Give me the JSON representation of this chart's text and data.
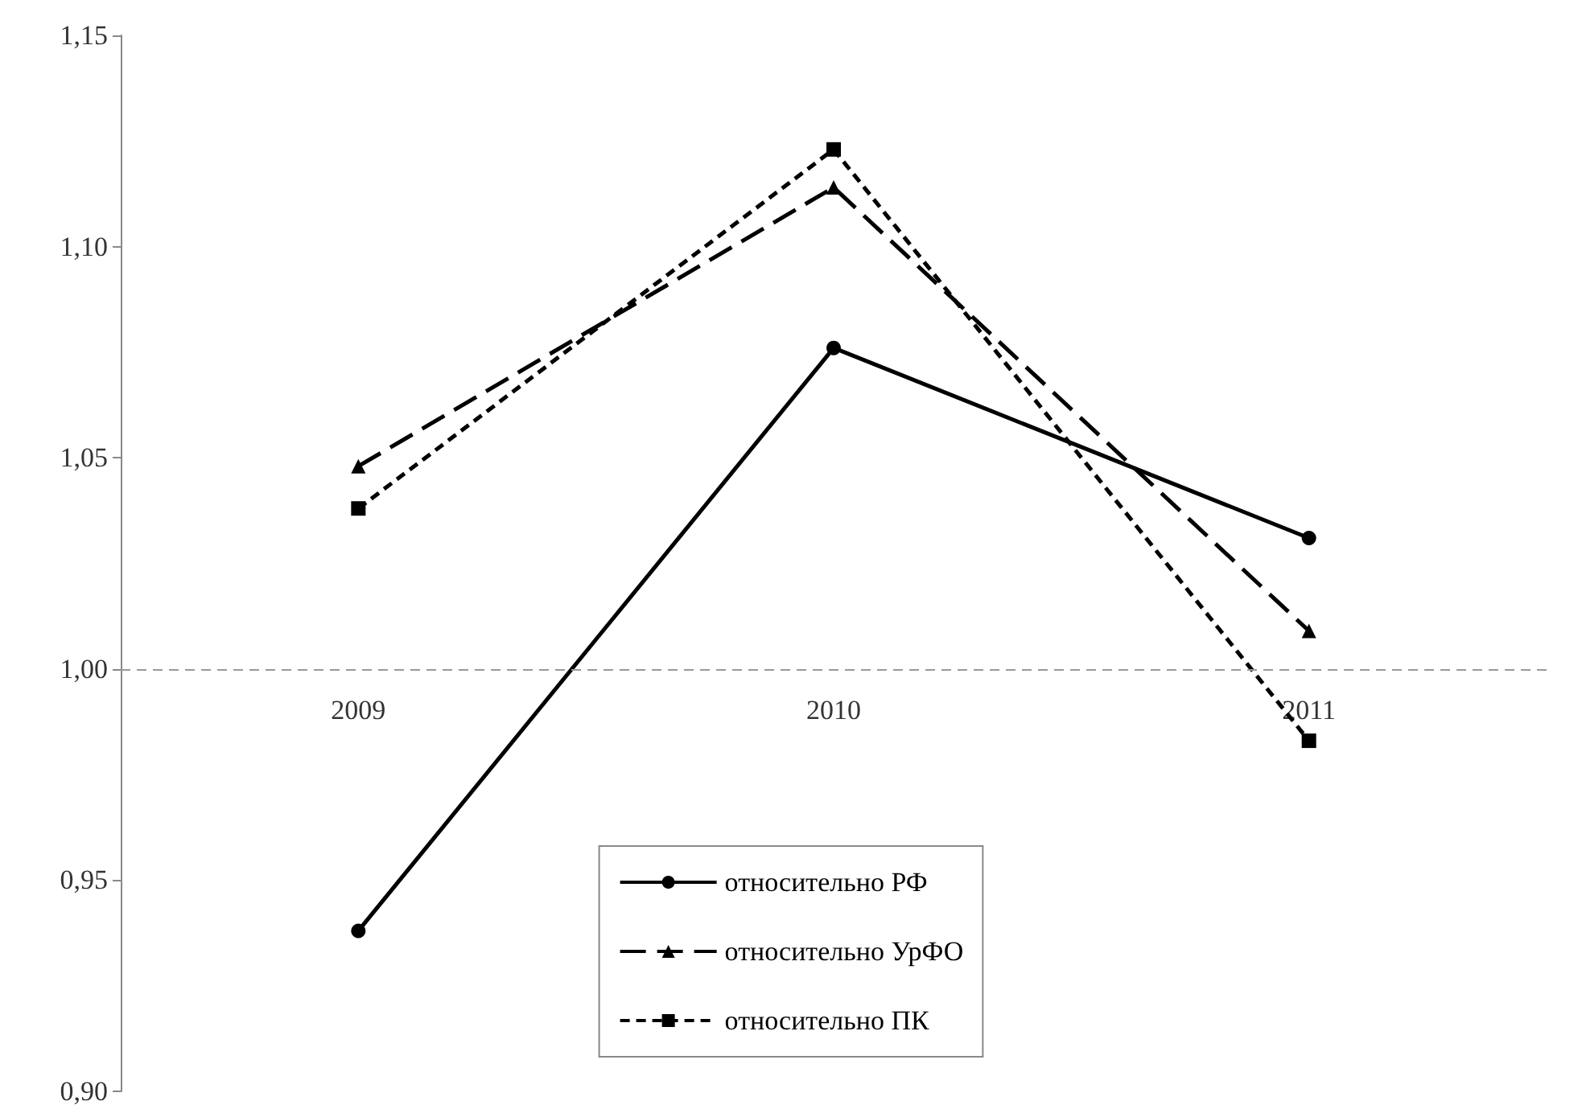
{
  "chart_data": {
    "type": "line",
    "categories": [
      "2009",
      "2010",
      "2011"
    ],
    "series": [
      {
        "name": "относительно РФ",
        "color": "#000000",
        "values": [
          0.938,
          1.076,
          1.031
        ],
        "marker": "circle",
        "line_style": "solid"
      },
      {
        "name": "относительно УрФО",
        "color": "#000000",
        "values": [
          1.048,
          1.114,
          1.009
        ],
        "marker": "triangle",
        "line_style": "dashed"
      },
      {
        "name": "относительно ПК",
        "color": "#000000",
        "values": [
          1.038,
          1.123,
          0.983
        ],
        "marker": "square",
        "line_style": "dotted"
      }
    ],
    "ylim": [
      0.9,
      1.15
    ],
    "yticks": [
      {
        "value": 0.9,
        "label": "0,90"
      },
      {
        "value": 0.95,
        "label": "0,95"
      },
      {
        "value": 1.0,
        "label": "1,00"
      },
      {
        "value": 1.05,
        "label": "1,05"
      },
      {
        "value": 1.1,
        "label": "1,10"
      },
      {
        "value": 1.15,
        "label": "1,15"
      }
    ],
    "ref_lines": [
      {
        "axis": "y",
        "value": 1.0,
        "color": "#999999",
        "line_style": "dotted"
      }
    ],
    "grid": false,
    "legend": "bottom"
  }
}
